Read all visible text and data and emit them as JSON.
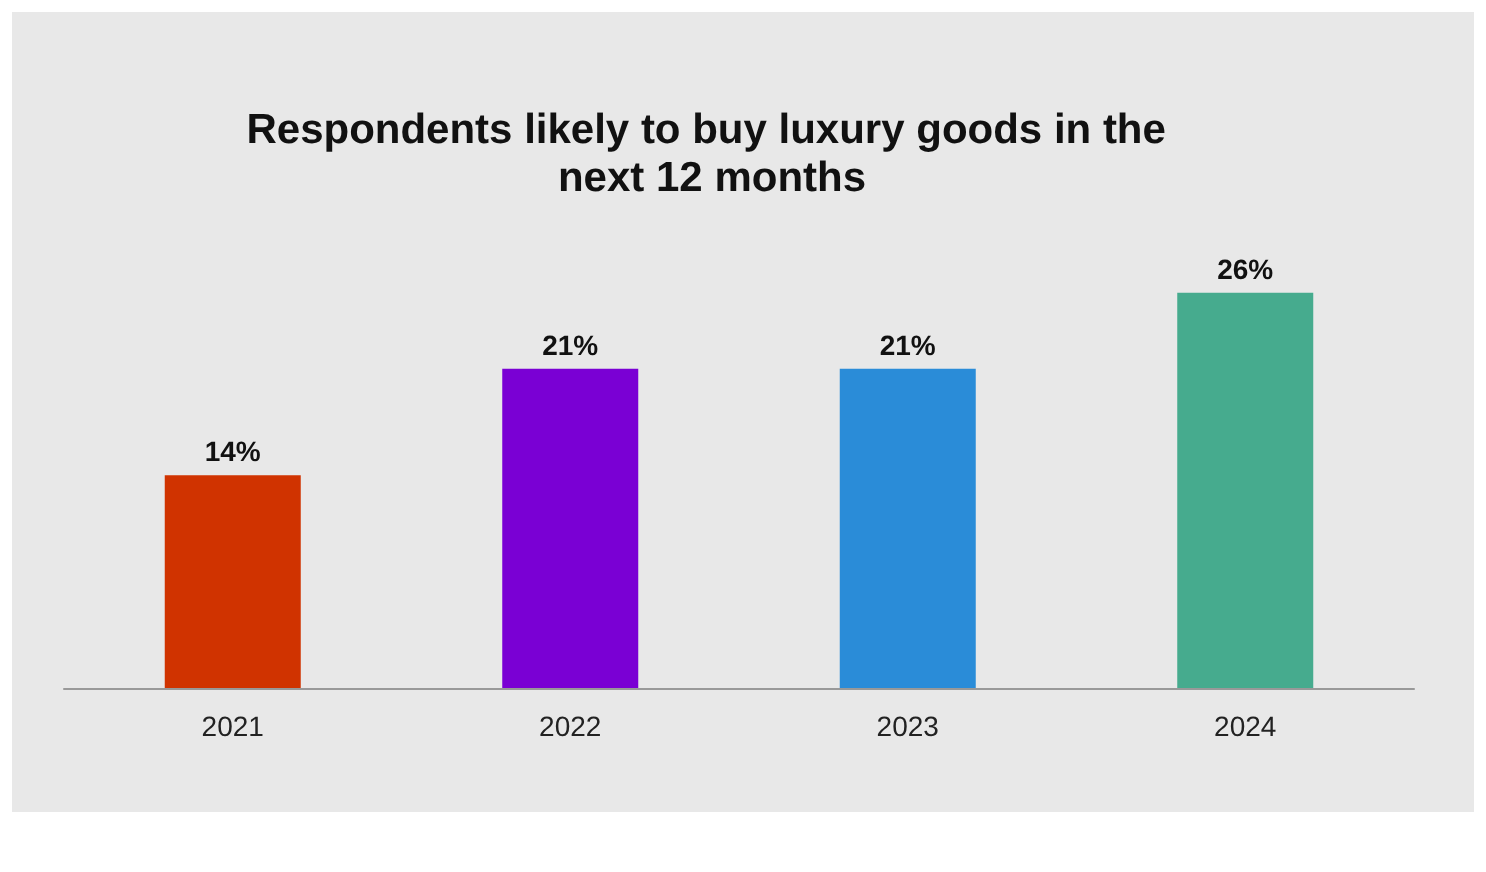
{
  "chart_data": {
    "type": "bar",
    "title": "Respondents likely to buy luxury goods in the next 12 months",
    "categories": [
      "2021",
      "2022",
      "2023",
      "2024"
    ],
    "values": [
      14,
      21,
      21,
      26
    ],
    "colors": [
      "#d03300",
      "#7a00d4",
      "#2a8cd8",
      "#46ab8e"
    ],
    "value_labels": [
      "14%",
      "21%",
      "21%",
      "26%"
    ]
  }
}
